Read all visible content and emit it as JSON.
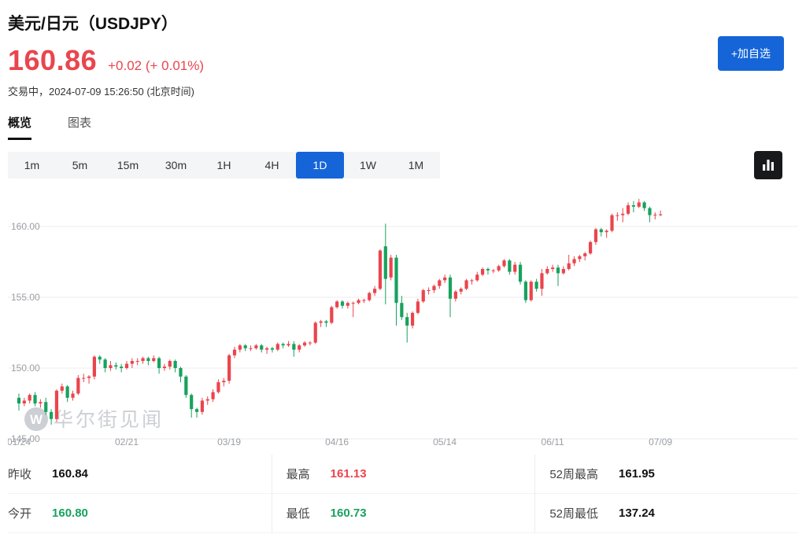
{
  "header": {
    "title": "美元/日元（USDJPY）",
    "price": "160.86",
    "change": "+0.02 (+ 0.01%)",
    "status": "交易中，2024-07-09 15:26:50 (北京时间)",
    "add_watchlist_label": "+加自选"
  },
  "tabs": [
    {
      "label": "概览",
      "active": true
    },
    {
      "label": "图表",
      "active": false
    }
  ],
  "periods": {
    "options": [
      "1m",
      "5m",
      "15m",
      "30m",
      "1H",
      "4H",
      "1D",
      "1W",
      "1M"
    ],
    "active": "1D"
  },
  "chart_style_button": {
    "icon": "bar-chart-icon"
  },
  "watermark": {
    "logo_letter": "W",
    "text": "华尔街见闻"
  },
  "stats": {
    "cells": [
      {
        "name": "prev-close",
        "label": "昨收",
        "value": "160.84",
        "color": "#111111"
      },
      {
        "name": "high",
        "label": "最高",
        "value": "161.13",
        "color": "#ea454d"
      },
      {
        "name": "52w-high",
        "label": "52周最高",
        "value": "161.95",
        "color": "#111111"
      },
      {
        "name": "open",
        "label": "今开",
        "value": "160.80",
        "color": "#17a25e"
      },
      {
        "name": "low",
        "label": "最低",
        "value": "160.73",
        "color": "#17a25e"
      },
      {
        "name": "52w-low",
        "label": "52周最低",
        "value": "137.24",
        "color": "#111111"
      }
    ]
  },
  "chart_data": {
    "type": "candlestick",
    "up_color": "#ea454d",
    "down_color": "#17a25e",
    "ylim": [
      145.0,
      162.3
    ],
    "grid": true,
    "y_ticks": [
      {
        "value": 160,
        "label": "160.00"
      },
      {
        "value": 155,
        "label": "155.00"
      },
      {
        "value": 150,
        "label": "150.00"
      },
      {
        "value": 145,
        "label": "145.00"
      }
    ],
    "x_ticks": [
      {
        "index": 0,
        "label": "01/24"
      },
      {
        "index": 20,
        "label": "02/21"
      },
      {
        "index": 39,
        "label": "03/19"
      },
      {
        "index": 59,
        "label": "04/16"
      },
      {
        "index": 79,
        "label": "05/14"
      },
      {
        "index": 99,
        "label": "06/11"
      },
      {
        "index": 119,
        "label": "07/09"
      }
    ],
    "candles": [
      [
        "01/24",
        147.9,
        148.2,
        147.0,
        147.5
      ],
      [
        "01/25",
        147.5,
        147.9,
        147.3,
        147.7
      ],
      [
        "01/26",
        147.7,
        148.2,
        147.5,
        148.1
      ],
      [
        "01/29",
        148.1,
        148.3,
        147.3,
        147.5
      ],
      [
        "01/30",
        147.5,
        147.8,
        147.2,
        147.6
      ],
      [
        "01/31",
        147.6,
        147.9,
        146.7,
        146.9
      ],
      [
        "02/01",
        146.9,
        147.1,
        146.0,
        146.4
      ],
      [
        "02/02",
        146.4,
        148.5,
        146.2,
        148.4
      ],
      [
        "02/05",
        148.4,
        148.9,
        148.2,
        148.7
      ],
      [
        "02/06",
        148.7,
        148.8,
        147.6,
        147.9
      ],
      [
        "02/07",
        147.9,
        148.4,
        147.7,
        148.2
      ],
      [
        "02/08",
        148.2,
        149.5,
        148.1,
        149.3
      ],
      [
        "02/09",
        149.3,
        149.6,
        149.0,
        149.3
      ],
      [
        "02/12",
        149.3,
        149.5,
        148.9,
        149.4
      ],
      [
        "02/13",
        149.4,
        150.9,
        149.2,
        150.8
      ],
      [
        "02/14",
        150.8,
        150.9,
        150.3,
        150.6
      ],
      [
        "02/15",
        150.6,
        150.7,
        149.7,
        150.0
      ],
      [
        "02/16",
        150.0,
        150.5,
        149.8,
        150.2
      ],
      [
        "02/19",
        150.2,
        150.4,
        149.9,
        150.1
      ],
      [
        "02/20",
        150.1,
        150.3,
        149.7,
        150.0
      ],
      [
        "02/21",
        150.0,
        150.5,
        149.9,
        150.3
      ],
      [
        "02/22",
        150.3,
        150.7,
        150.0,
        150.5
      ],
      [
        "02/23",
        150.5,
        150.7,
        150.2,
        150.5
      ],
      [
        "02/26",
        150.5,
        150.8,
        150.3,
        150.7
      ],
      [
        "02/27",
        150.7,
        150.8,
        150.2,
        150.5
      ],
      [
        "02/28",
        150.5,
        150.9,
        150.4,
        150.7
      ],
      [
        "02/29",
        150.7,
        150.8,
        149.6,
        150.0
      ],
      [
        "03/01",
        150.0,
        150.3,
        149.8,
        150.1
      ],
      [
        "03/04",
        150.1,
        150.6,
        149.9,
        150.5
      ],
      [
        "03/05",
        150.5,
        150.6,
        149.7,
        150.0
      ],
      [
        "03/06",
        150.0,
        150.1,
        149.0,
        149.4
      ],
      [
        "03/07",
        149.4,
        149.5,
        147.9,
        148.1
      ],
      [
        "03/08",
        148.1,
        148.2,
        146.5,
        147.1
      ],
      [
        "03/11",
        147.1,
        147.2,
        146.5,
        146.9
      ],
      [
        "03/12",
        146.9,
        147.9,
        146.7,
        147.7
      ],
      [
        "03/13",
        147.7,
        148.0,
        147.4,
        147.8
      ],
      [
        "03/14",
        147.8,
        148.5,
        147.6,
        148.3
      ],
      [
        "03/15",
        148.3,
        149.2,
        148.2,
        149.0
      ],
      [
        "03/18",
        149.0,
        149.3,
        148.7,
        149.1
      ],
      [
        "03/19",
        149.1,
        151.0,
        148.9,
        150.9
      ],
      [
        "03/20",
        150.9,
        151.5,
        150.7,
        151.3
      ],
      [
        "03/21",
        151.3,
        151.7,
        151.1,
        151.6
      ],
      [
        "03/22",
        151.6,
        151.7,
        151.2,
        151.4
      ],
      [
        "03/25",
        151.4,
        151.6,
        151.2,
        151.4
      ],
      [
        "03/26",
        151.4,
        151.7,
        151.3,
        151.6
      ],
      [
        "03/27",
        151.6,
        151.7,
        151.1,
        151.3
      ],
      [
        "03/28",
        151.3,
        151.5,
        151.0,
        151.4
      ],
      [
        "03/29",
        151.4,
        151.5,
        151.1,
        151.3
      ],
      [
        "04/01",
        151.3,
        151.8,
        151.2,
        151.7
      ],
      [
        "04/02",
        151.7,
        151.8,
        151.4,
        151.6
      ],
      [
        "04/03",
        151.6,
        151.9,
        151.5,
        151.7
      ],
      [
        "04/04",
        151.7,
        151.9,
        150.8,
        151.3
      ],
      [
        "04/05",
        151.3,
        151.7,
        151.1,
        151.6
      ],
      [
        "04/08",
        151.6,
        151.9,
        151.5,
        151.8
      ],
      [
        "04/09",
        151.8,
        151.9,
        151.6,
        151.8
      ],
      [
        "04/10",
        151.8,
        153.3,
        151.7,
        153.2
      ],
      [
        "04/11",
        153.2,
        153.4,
        152.9,
        153.3
      ],
      [
        "04/12",
        153.3,
        153.4,
        152.9,
        153.2
      ],
      [
        "04/15",
        153.2,
        154.4,
        153.1,
        154.3
      ],
      [
        "04/16",
        154.3,
        154.8,
        154.2,
        154.7
      ],
      [
        "04/17",
        154.7,
        154.8,
        154.2,
        154.4
      ],
      [
        "04/18",
        154.4,
        154.7,
        154.2,
        154.6
      ],
      [
        "04/19",
        154.6,
        154.7,
        153.6,
        154.6
      ],
      [
        "04/22",
        154.6,
        154.9,
        154.5,
        154.8
      ],
      [
        "04/23",
        154.8,
        154.9,
        154.6,
        154.8
      ],
      [
        "04/24",
        154.8,
        155.4,
        154.7,
        155.3
      ],
      [
        "04/25",
        155.3,
        155.8,
        155.1,
        155.6
      ],
      [
        "04/26",
        155.6,
        158.4,
        155.5,
        158.3
      ],
      [
        "04/29",
        158.6,
        160.2,
        154.5,
        156.3
      ],
      [
        "04/30",
        156.4,
        158.0,
        156.2,
        157.8
      ],
      [
        "05/01",
        157.8,
        158.0,
        153.0,
        154.6
      ],
      [
        "05/02",
        154.6,
        155.1,
        153.4,
        153.6
      ],
      [
        "05/03",
        153.6,
        153.9,
        151.8,
        153.0
      ],
      [
        "05/06",
        153.0,
        154.0,
        152.8,
        153.9
      ],
      [
        "05/07",
        153.9,
        154.9,
        153.8,
        154.7
      ],
      [
        "05/08",
        154.7,
        155.6,
        154.6,
        155.5
      ],
      [
        "05/09",
        155.5,
        155.7,
        155.2,
        155.5
      ],
      [
        "05/10",
        155.5,
        155.9,
        155.3,
        155.8
      ],
      [
        "05/13",
        155.8,
        156.3,
        155.6,
        156.2
      ],
      [
        "05/14",
        156.2,
        156.6,
        156.0,
        156.4
      ],
      [
        "05/15",
        156.4,
        156.6,
        153.6,
        154.9
      ],
      [
        "05/16",
        154.9,
        155.5,
        154.7,
        155.4
      ],
      [
        "05/17",
        155.4,
        155.7,
        155.2,
        155.6
      ],
      [
        "05/20",
        155.6,
        156.3,
        155.5,
        156.2
      ],
      [
        "05/21",
        156.2,
        156.3,
        155.9,
        156.2
      ],
      [
        "05/22",
        156.2,
        156.8,
        156.1,
        156.6
      ],
      [
        "05/23",
        156.6,
        157.1,
        156.5,
        157.0
      ],
      [
        "05/24",
        157.0,
        157.1,
        156.6,
        156.9
      ],
      [
        "05/27",
        156.9,
        157.0,
        156.7,
        156.9
      ],
      [
        "05/28",
        156.9,
        157.3,
        156.8,
        157.2
      ],
      [
        "05/29",
        157.2,
        157.7,
        157.1,
        157.6
      ],
      [
        "05/30",
        157.6,
        157.7,
        156.6,
        156.8
      ],
      [
        "05/31",
        156.8,
        157.5,
        156.6,
        157.3
      ],
      [
        "06/03",
        157.3,
        157.5,
        155.9,
        156.1
      ],
      [
        "06/04",
        156.1,
        156.2,
        154.6,
        154.8
      ],
      [
        "06/05",
        154.8,
        156.2,
        154.7,
        156.1
      ],
      [
        "06/06",
        156.1,
        156.3,
        155.4,
        155.6
      ],
      [
        "06/07",
        155.6,
        157.0,
        155.1,
        156.7
      ],
      [
        "06/10",
        156.7,
        157.2,
        156.6,
        157.0
      ],
      [
        "06/11",
        157.0,
        157.3,
        156.8,
        157.1
      ],
      [
        "06/12",
        157.1,
        157.3,
        155.8,
        156.7
      ],
      [
        "06/13",
        156.7,
        157.2,
        156.6,
        157.0
      ],
      [
        "06/14",
        157.0,
        158.0,
        156.9,
        157.4
      ],
      [
        "06/17",
        157.4,
        157.9,
        157.2,
        157.7
      ],
      [
        "06/18",
        157.7,
        158.0,
        157.5,
        157.9
      ],
      [
        "06/19",
        157.9,
        158.2,
        157.6,
        158.1
      ],
      [
        "06/20",
        158.1,
        159.0,
        158.0,
        158.9
      ],
      [
        "06/21",
        158.9,
        159.9,
        158.7,
        159.8
      ],
      [
        "06/24",
        159.8,
        159.9,
        159.3,
        159.6
      ],
      [
        "06/25",
        159.6,
        159.8,
        159.2,
        159.7
      ],
      [
        "06/26",
        159.7,
        160.9,
        159.6,
        160.8
      ],
      [
        "06/27",
        160.8,
        161.0,
        160.4,
        160.8
      ],
      [
        "06/28",
        160.8,
        161.3,
        160.3,
        160.9
      ],
      [
        "07/01",
        160.9,
        161.7,
        160.8,
        161.5
      ],
      [
        "07/02",
        161.5,
        161.8,
        161.0,
        161.4
      ],
      [
        "07/03",
        161.4,
        161.95,
        161.3,
        161.7
      ],
      [
        "07/04",
        161.7,
        161.8,
        161.1,
        161.3
      ],
      [
        "07/05",
        161.3,
        161.4,
        160.3,
        160.8
      ],
      [
        "07/08",
        160.8,
        161.0,
        160.5,
        160.84
      ],
      [
        "07/09",
        160.8,
        161.13,
        160.73,
        160.86
      ]
    ]
  }
}
